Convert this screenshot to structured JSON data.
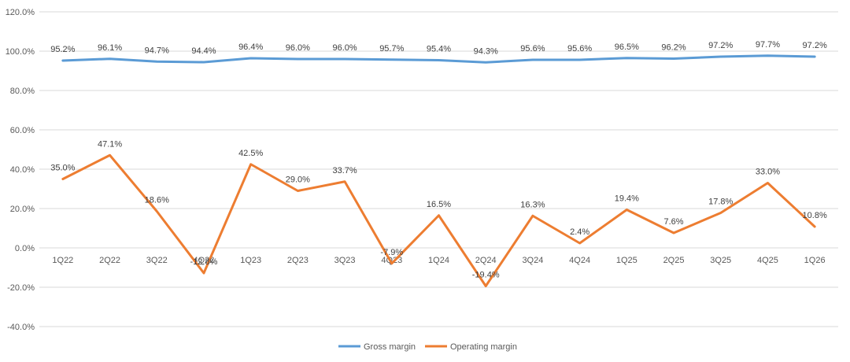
{
  "chart_data": {
    "type": "line",
    "title": "",
    "xlabel": "",
    "ylabel": "",
    "categories": [
      "1Q22",
      "2Q22",
      "3Q22",
      "4Q22",
      "1Q23",
      "2Q23",
      "3Q23",
      "4Q23",
      "1Q24",
      "2Q24",
      "3Q24",
      "4Q24",
      "1Q25",
      "2Q25",
      "3Q25",
      "4Q25",
      "1Q26"
    ],
    "ylim": [
      -40,
      120
    ],
    "yticks": [
      -40,
      -20,
      0,
      20,
      40,
      60,
      80,
      100,
      120
    ],
    "ytick_labels": [
      "-40.0%",
      "-20.0%",
      "0.0%",
      "20.0%",
      "40.0%",
      "60.0%",
      "80.0%",
      "100.0%",
      "120.0%"
    ],
    "grid": true,
    "legend_position": "bottom",
    "series": [
      {
        "name": "Gross margin",
        "color": "#5B9BD5",
        "values": [
          95.2,
          96.1,
          94.7,
          94.4,
          96.4,
          96.0,
          96.0,
          95.7,
          95.4,
          94.3,
          95.6,
          95.6,
          96.5,
          96.2,
          97.2,
          97.7,
          97.2
        ],
        "labels": [
          "95.2%",
          "96.1%",
          "94.7%",
          "94.4%",
          "96.4%",
          "96.0%",
          "96.0%",
          "95.7%",
          "95.4%",
          "94.3%",
          "95.6%",
          "95.6%",
          "96.5%",
          "96.2%",
          "97.2%",
          "97.7%",
          "97.2%"
        ]
      },
      {
        "name": "Operating margin",
        "color": "#ED7D31",
        "values": [
          35.0,
          47.1,
          18.6,
          -12.8,
          42.5,
          29.0,
          33.7,
          -7.9,
          16.5,
          -19.4,
          16.3,
          2.4,
          19.4,
          7.6,
          17.8,
          33.0,
          10.8
        ],
        "labels": [
          "35.0%",
          "47.1%",
          "18.6%",
          "-12.8%",
          "42.5%",
          "29.0%",
          "33.7%",
          "-7.9%",
          "16.5%",
          "-19.4%",
          "16.3%",
          "2.4%",
          "19.4%",
          "7.6%",
          "17.8%",
          "33.0%",
          "10.8%"
        ]
      }
    ]
  }
}
